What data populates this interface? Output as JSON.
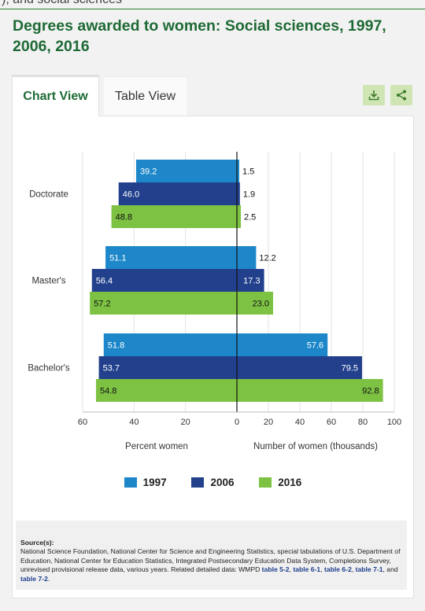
{
  "top_fragment": "), and social sciences",
  "title": "Degrees awarded to women: Social sciences, 1997, 2006, 2016",
  "tabs": {
    "chart": "Chart View",
    "table": "Table View"
  },
  "actions": {
    "download_icon": "download-icon",
    "share_icon": "share-icon"
  },
  "colors": {
    "1997": "#1d87c9",
    "2006": "#22408c",
    "2016": "#7dc243",
    "title": "#1e6a35",
    "action_bg": "#cfe6b4"
  },
  "chart_data": {
    "type": "bar",
    "orientation": "horizontal",
    "layout": "diverging",
    "categories": [
      "Doctorate",
      "Master's",
      "Bachelor's"
    ],
    "left_panel": {
      "xlabel": "Percent women",
      "ticks": [
        "60",
        "40",
        "20",
        "0"
      ],
      "xlim": [
        0,
        60
      ],
      "series": [
        {
          "name": "1997",
          "values": [
            39.2,
            51.1,
            51.8
          ]
        },
        {
          "name": "2006",
          "values": [
            46.0,
            56.4,
            53.7
          ]
        },
        {
          "name": "2016",
          "values": [
            48.8,
            57.2,
            54.8
          ]
        }
      ],
      "labels": [
        [
          "39.2",
          "46.0",
          "48.8"
        ],
        [
          "51.1",
          "56.4",
          "57.2"
        ],
        [
          "51.8",
          "53.7",
          "54.8"
        ]
      ]
    },
    "right_panel": {
      "xlabel": "Number of women (thousands)",
      "ticks": [
        "20",
        "40",
        "60",
        "80",
        "100"
      ],
      "xlim": [
        0,
        100
      ],
      "series": [
        {
          "name": "1997",
          "values": [
            1.5,
            12.2,
            57.6
          ]
        },
        {
          "name": "2006",
          "values": [
            1.9,
            17.3,
            79.5
          ]
        },
        {
          "name": "2016",
          "values": [
            2.5,
            23.0,
            92.8
          ]
        }
      ],
      "labels": [
        [
          "1.5",
          "1.9",
          "2.5"
        ],
        [
          "12.2",
          "17.3",
          "23.0"
        ],
        [
          "57.6",
          "79.5",
          "92.8"
        ]
      ]
    },
    "legend": [
      "1997",
      "2006",
      "2016"
    ],
    "grid": true
  },
  "source": {
    "label": "Source(s):",
    "text": "National Science Foundation, National Center for Science and Engineering Statistics, special tabulations of U.S. Department of Education, National Center for Education Statistics, Integrated Postsecondary Education Data System, Completions Survey, unrevised provisional release data, various years. Related detailed data: WMPD",
    "links": [
      "table 5-2",
      "table 6-1",
      "table 6-2",
      "table 7-1",
      "table 7-2"
    ],
    "sep1": ", ",
    "sep_and": ", and ",
    "end": "."
  }
}
